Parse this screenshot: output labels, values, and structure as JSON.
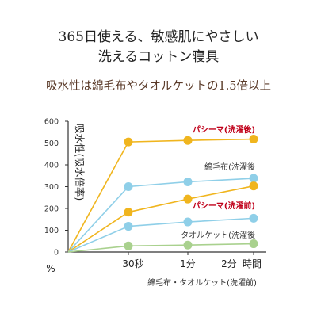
{
  "header": {
    "title_line1": "365日使える、敏感肌にやさしい",
    "title_line2": "洗えるコットン寝具",
    "subtitle": "吸水性は綿毛布やタオルケットの1.5倍以上"
  },
  "chart_data": {
    "type": "line",
    "ylabel": "吸水性(吸水倍率)",
    "yunit": "%",
    "xlabel": "時間",
    "categories": [
      "0",
      "30秒",
      "1分",
      "2分"
    ],
    "ylim": [
      0,
      600
    ],
    "yticks": [
      0,
      100,
      200,
      300,
      400,
      500,
      600
    ],
    "series": [
      {
        "name": "パシーマ(洗濯後)",
        "color": "#f0b51e",
        "label_color": "#c0001a",
        "values": [
          0,
          505,
          512,
          518
        ]
      },
      {
        "name": "綿毛布(洗濯後",
        "color": "#8fcfe8",
        "label_color": "#333333",
        "values": [
          0,
          300,
          322,
          338
        ]
      },
      {
        "name": "パシーマ(洗濯前)",
        "color": "#f0b51e",
        "label_color": "#c0001a",
        "values": [
          0,
          183,
          243,
          303
        ]
      },
      {
        "name": "タオルケット(洗濯後",
        "color": "#8fcfe8",
        "label_color": "#333333",
        "values": [
          0,
          118,
          138,
          155
        ]
      },
      {
        "name": "綿毛布・タオルケット(洗濯前)",
        "color": "#a9d18e",
        "label_color": "#333333",
        "values": [
          0,
          28,
          32,
          38
        ]
      }
    ]
  }
}
